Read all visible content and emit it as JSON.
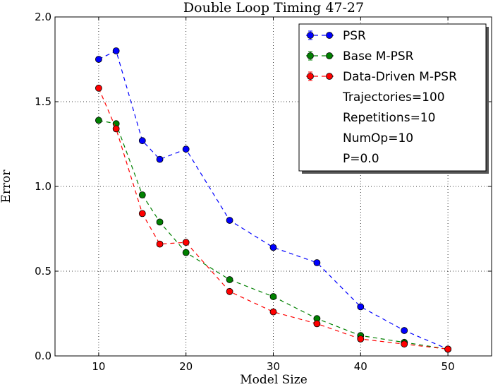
{
  "chart_data": {
    "type": "line",
    "title": "Double Loop Timing 47-27",
    "xlabel": "Model Size",
    "ylabel": "Error",
    "xlim": [
      5,
      55
    ],
    "ylim": [
      0.0,
      2.0
    ],
    "xticks": [
      10,
      20,
      30,
      40,
      50
    ],
    "xtick_labels": [
      "10",
      "20",
      "30",
      "40",
      "50"
    ],
    "yticks": [
      0.0,
      0.5,
      1.0,
      1.5,
      2.0
    ],
    "ytick_labels": [
      "0.0",
      "0.5",
      "1.0",
      "1.5",
      "2.0"
    ],
    "grid": true,
    "legend_position": "top-right",
    "series": [
      {
        "name": "PSR",
        "color": "#0000ff",
        "x": [
          10,
          12,
          15,
          17,
          20,
          25,
          30,
          35,
          40,
          45,
          50
        ],
        "y": [
          1.75,
          1.8,
          1.27,
          1.16,
          1.22,
          0.8,
          0.64,
          0.55,
          0.29,
          0.15,
          0.04
        ]
      },
      {
        "name": "Base M-PSR",
        "color": "#008000",
        "x": [
          10,
          12,
          15,
          17,
          20,
          25,
          30,
          35,
          40,
          45,
          50
        ],
        "y": [
          1.39,
          1.37,
          0.95,
          0.79,
          0.61,
          0.45,
          0.35,
          0.22,
          0.12,
          0.08,
          0.04
        ]
      },
      {
        "name": "Data-Driven M-PSR",
        "color": "#ff0000",
        "x": [
          10,
          12,
          15,
          17,
          20,
          25,
          30,
          35,
          40,
          45,
          50
        ],
        "y": [
          1.58,
          1.34,
          0.84,
          0.66,
          0.67,
          0.38,
          0.26,
          0.19,
          0.1,
          0.07,
          0.04
        ]
      }
    ],
    "legend_notes": [
      "Trajectories=100",
      "Repetitions=10",
      "NumOp=10",
      "P=0.0"
    ]
  }
}
